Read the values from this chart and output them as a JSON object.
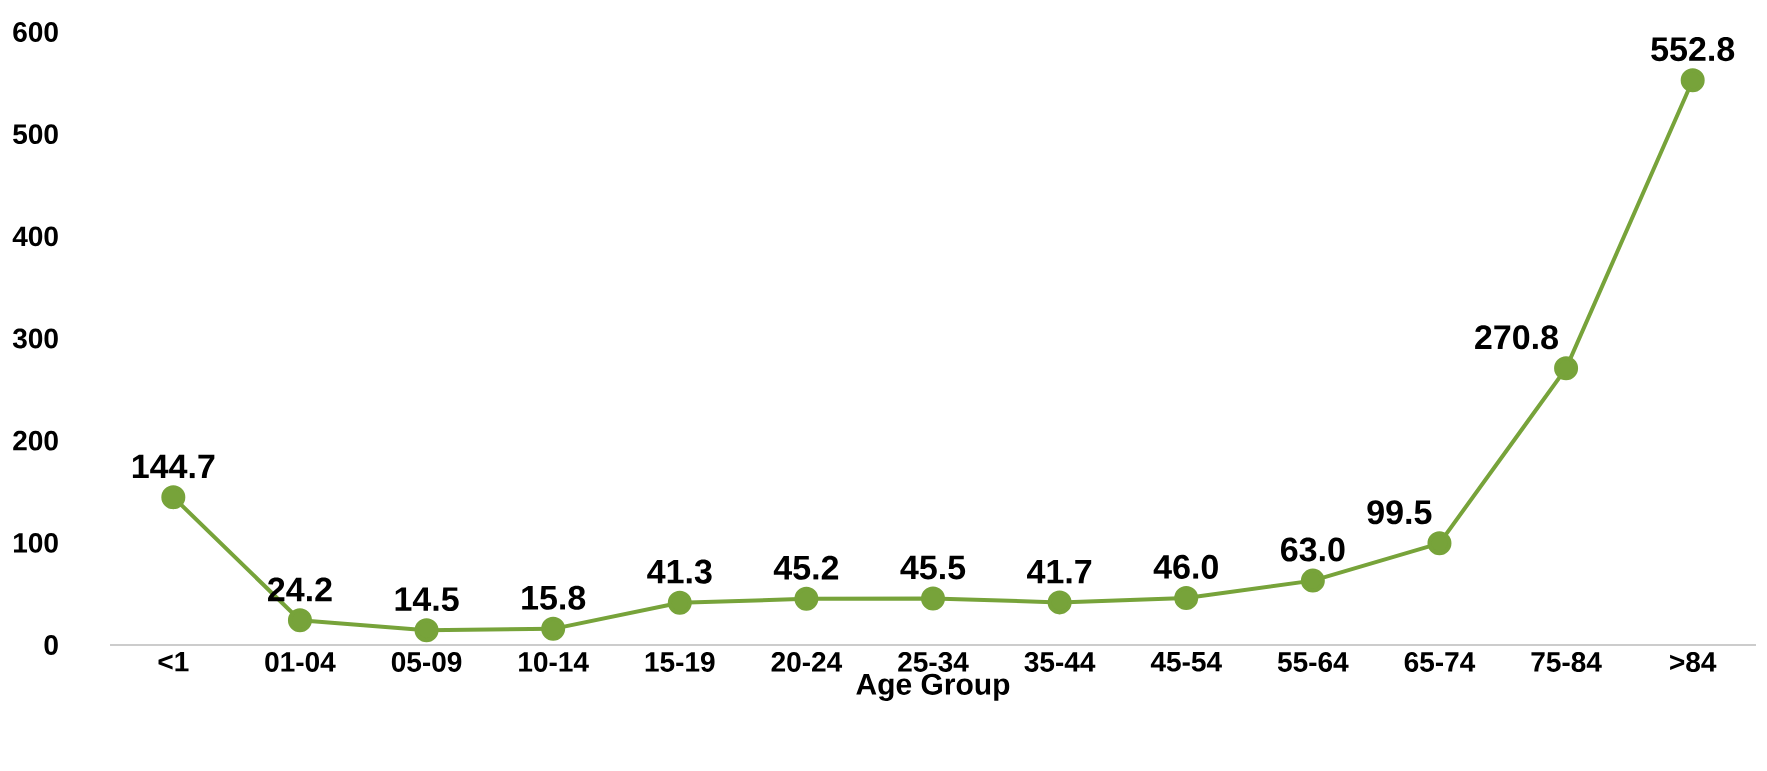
{
  "chart_data": {
    "type": "line",
    "xlabel": "Age Group",
    "categories": [
      "<1",
      "01-04",
      "05-09",
      "10-14",
      "15-19",
      "20-24",
      "25-34",
      "35-44",
      "45-54",
      "55-64",
      "65-74",
      "75-84",
      ">84"
    ],
    "values": [
      144.7,
      24.2,
      14.5,
      15.8,
      41.3,
      45.2,
      45.5,
      41.7,
      46.0,
      63.0,
      99.5,
      270.8,
      552.8
    ],
    "value_labels": [
      "144.7",
      "24.2",
      "14.5",
      "15.8",
      "41.3",
      "45.2",
      "45.5",
      "41.7",
      "46.0",
      "63.0",
      "99.5",
      "270.8",
      "552.8"
    ],
    "color": "#77a33a",
    "ylim": [
      0,
      600
    ],
    "yticks": [
      0,
      100,
      200,
      300,
      400,
      500,
      600
    ],
    "marker": "circle",
    "line_style": "solid"
  }
}
